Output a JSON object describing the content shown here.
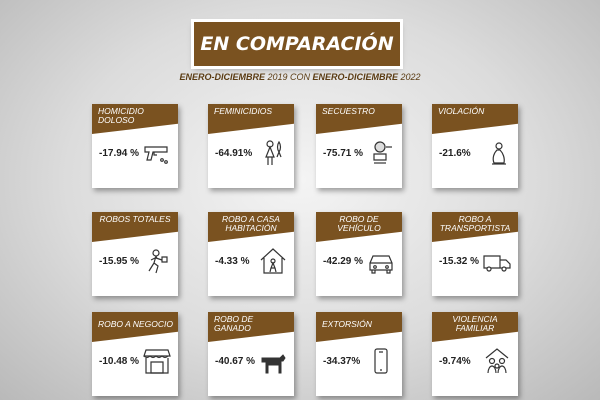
{
  "header": {
    "title": "EN COMPARACIÓN",
    "subtitle_a": "ENERO-DICIEMBRE",
    "subtitle_b": " 2019 CON ",
    "subtitle_c": "ENERO-DICIEMBRE",
    "subtitle_d": " 2022"
  },
  "cards": [
    {
      "label": "HOMICIDIO DOLOSO",
      "value": "-17.94 %",
      "icon": "gun-icon"
    },
    {
      "label": "FEMINICIDIOS",
      "value": "-64.91%",
      "icon": "woman-icon"
    },
    {
      "label": "SECUESTRO",
      "value": "-75.71 %",
      "icon": "hostage-icon"
    },
    {
      "label": "VIOLACIÓN",
      "value": "-21.6%",
      "icon": "victim-icon"
    },
    {
      "label": "ROBOS TOTALES",
      "value": "-15.95 %",
      "icon": "thief-icon"
    },
    {
      "label": "ROBO A CASA HABITACIÓN",
      "value": "-4.33 %",
      "icon": "house-icon"
    },
    {
      "label": "ROBO DE VEHÍCULO",
      "value": "-42.29 %",
      "icon": "car-icon"
    },
    {
      "label": "ROBO A TRANSPORTISTA",
      "value": "-15.32 %",
      "icon": "truck-icon"
    },
    {
      "label": "ROBO A NEGOCIO",
      "value": "-10.48 %",
      "icon": "store-icon"
    },
    {
      "label": "ROBO DE GANADO",
      "value": "-40.67 %",
      "icon": "cow-icon"
    },
    {
      "label": "EXTORSIÓN",
      "value": "-34.37%",
      "icon": "phone-icon"
    },
    {
      "label": "VIOLENCIA FAMILIAR",
      "value": "-9.74%",
      "icon": "family-icon"
    }
  ]
}
